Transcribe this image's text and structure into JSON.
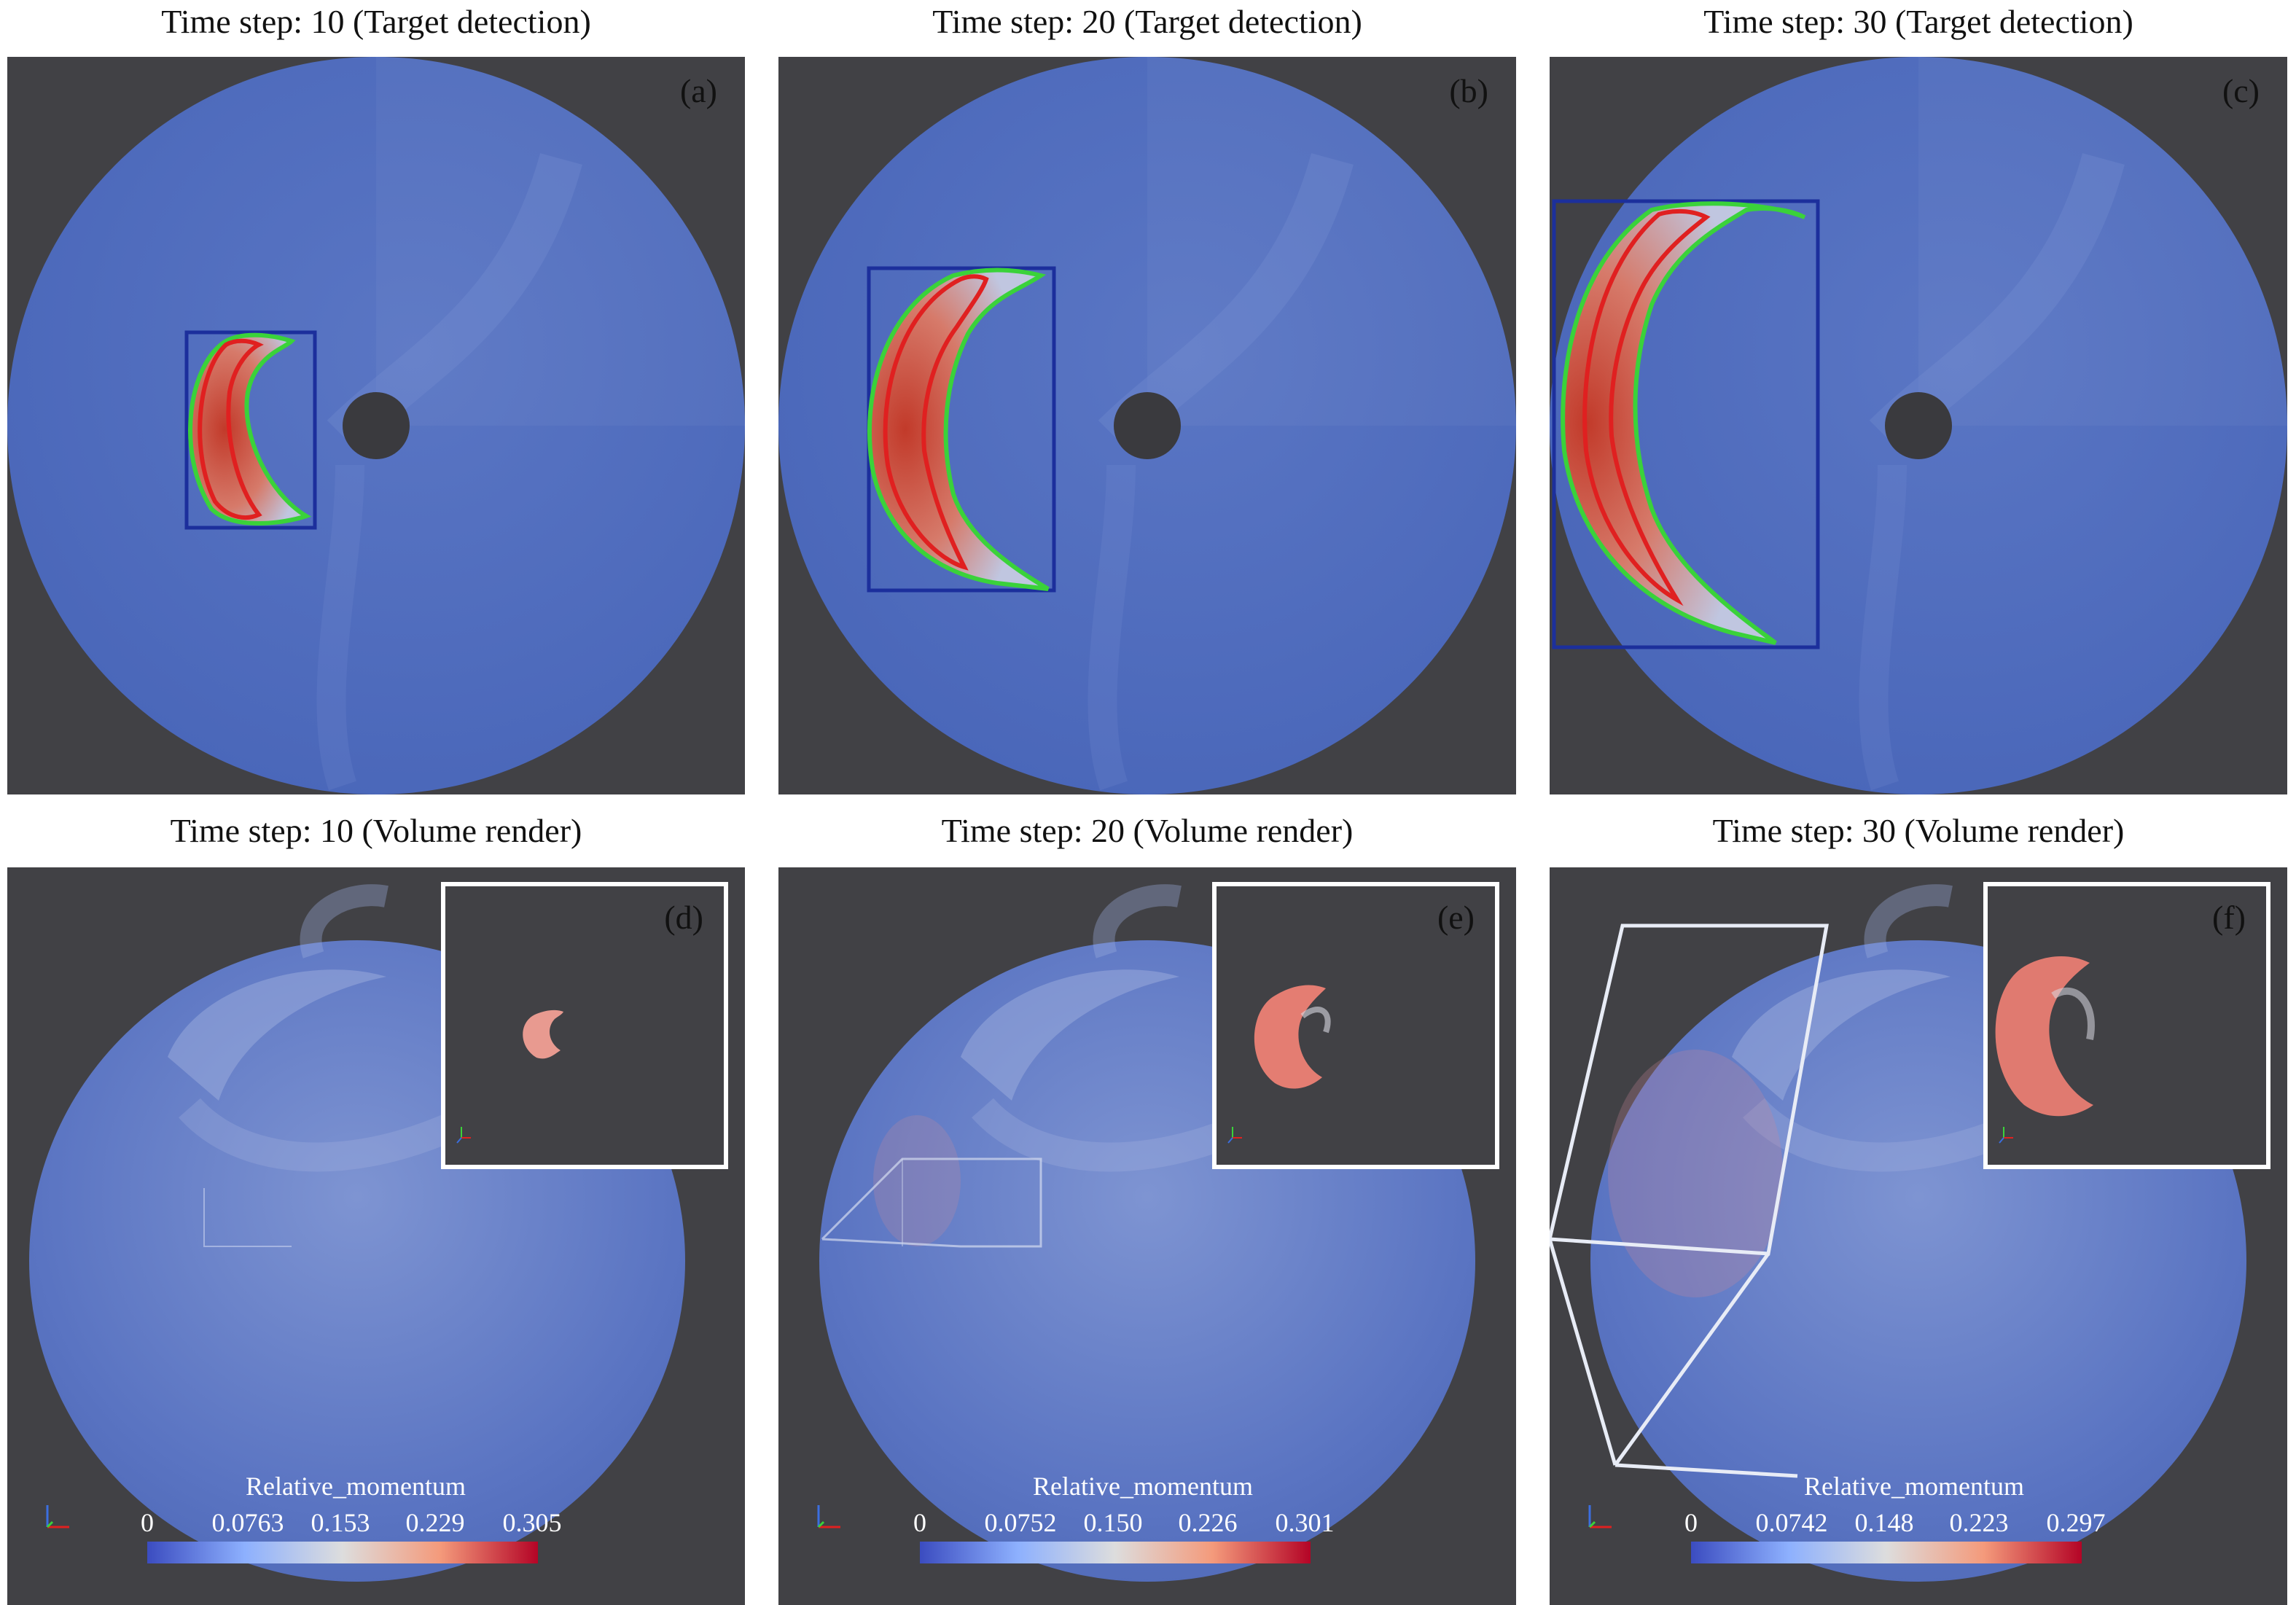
{
  "panels_top": [
    {
      "title": "Time step: 10 (Target detection)",
      "label": "(a)"
    },
    {
      "title": "Time step: 20 (Target detection)",
      "label": "(b)"
    },
    {
      "title": "Time step: 30 (Target detection)",
      "label": "(c)"
    }
  ],
  "panels_bottom": [
    {
      "title": "Time step: 10 (Volume render)",
      "label": "(d)",
      "colorbar_title": "Relative_momentum",
      "ticks": [
        "0",
        "0.0763",
        "0.153",
        "0.229",
        "0.305"
      ]
    },
    {
      "title": "Time step: 20 (Volume render)",
      "label": "(e)",
      "colorbar_title": "Relative_momentum",
      "ticks": [
        "0",
        "0.0752",
        "0.150",
        "0.226",
        "0.301"
      ]
    },
    {
      "title": "Time step: 30 (Volume render)",
      "label": "(f)",
      "colorbar_title": "Relative_momentum",
      "ticks": [
        "0",
        "0.0742",
        "0.148",
        "0.223",
        "0.297"
      ]
    }
  ],
  "colors": {
    "background": "#414145",
    "field_blue": "#4f6bbd",
    "detection_box": "#1c2f9c",
    "contour_outer": "#3ad23a",
    "contour_inner": "#e02020",
    "colormap_low": "#3b4cc0",
    "colormap_mid": "#dddddd",
    "colormap_high": "#b40426"
  }
}
